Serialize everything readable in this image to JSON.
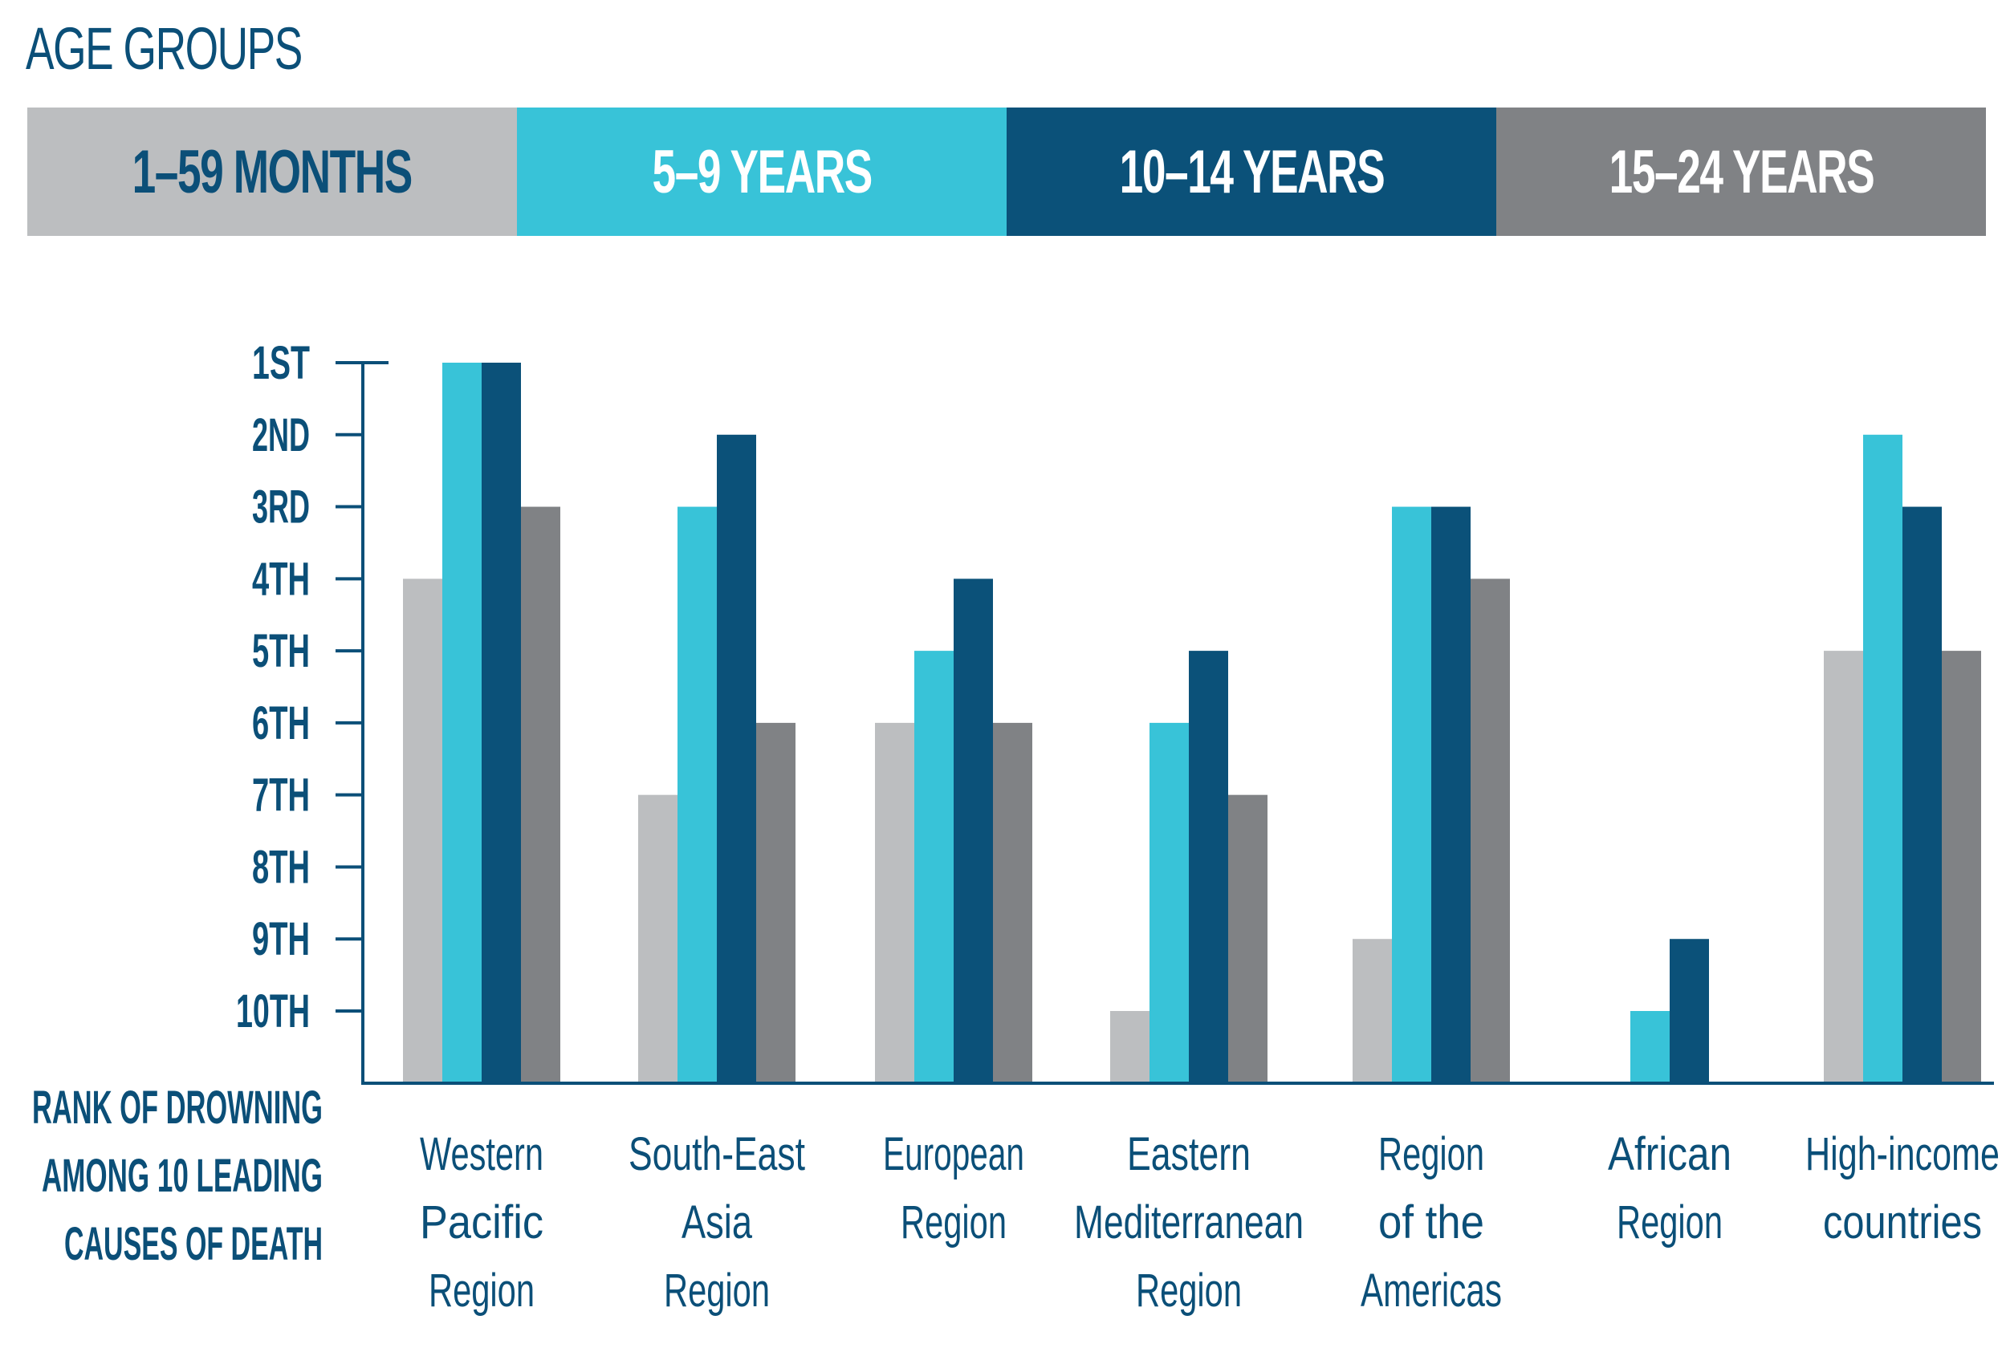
{
  "header": {
    "title": "AGE GROUPS"
  },
  "legend": [
    {
      "label": "1–59 MONTHS",
      "color": "#bcbec0",
      "text_color": "#0b4f78"
    },
    {
      "label": "5–9 YEARS",
      "color": "#38c3d8",
      "text_color": "#ffffff"
    },
    {
      "label": "10–14 YEARS",
      "color": "#0b5179",
      "text_color": "#ffffff"
    },
    {
      "label": "15–24 YEARS",
      "color": "#808285",
      "text_color": "#ffffff"
    }
  ],
  "chart_data": {
    "type": "bar",
    "title": "AGE GROUPS",
    "xlabel": "",
    "ylabel": [
      "RANK OF DROWNING",
      "AMONG 10 LEADING",
      "CAUSES OF DEATH"
    ],
    "y_ticks": [
      "1ST",
      "2ND",
      "3RD",
      "4TH",
      "5TH",
      "6TH",
      "7TH",
      "8TH",
      "9TH",
      "10TH"
    ],
    "ylim": [
      1,
      11
    ],
    "categories": [
      [
        "Western",
        "Pacific",
        "Region"
      ],
      [
        "South-East",
        "Asia",
        "Region"
      ],
      [
        "European",
        "Region"
      ],
      [
        "Eastern",
        "Mediterranean",
        "Region"
      ],
      [
        "Region",
        "of the",
        "Americas"
      ],
      [
        "African",
        "Region"
      ],
      [
        "High-income",
        "countries"
      ]
    ],
    "series": [
      {
        "name": "1–59 MONTHS",
        "color": "#bcbec0",
        "values": [
          4,
          7,
          6,
          10,
          9,
          null,
          5
        ]
      },
      {
        "name": "5–9 YEARS",
        "color": "#38c3d8",
        "values": [
          1,
          3,
          5,
          6,
          3,
          10,
          2
        ]
      },
      {
        "name": "10–14 YEARS",
        "color": "#0b5179",
        "values": [
          1,
          2,
          4,
          5,
          3,
          9,
          3
        ]
      },
      {
        "name": "15–24 YEARS",
        "color": "#808285",
        "values": [
          3,
          6,
          6,
          7,
          4,
          null,
          5
        ]
      }
    ]
  }
}
